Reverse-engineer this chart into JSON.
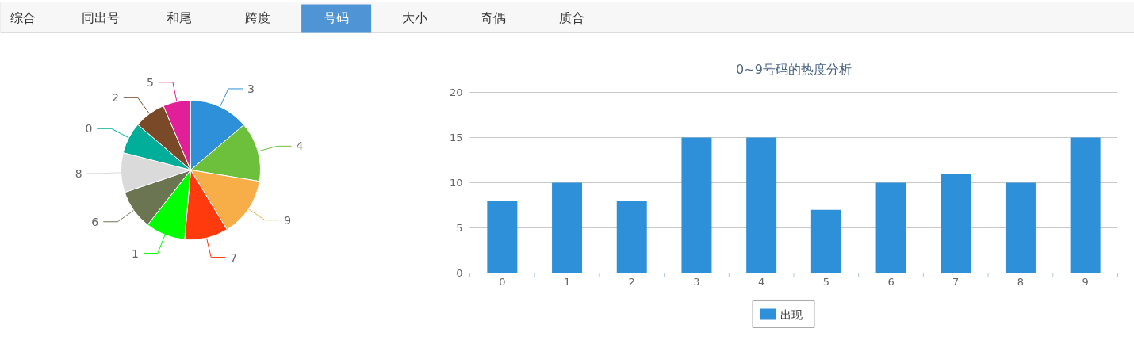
{
  "chart_data": [
    {
      "type": "other",
      "categories": [
        "综合",
        "同出号",
        "和尾",
        "跨度",
        "号码",
        "大小",
        "奇偶",
        "质合"
      ],
      "colors": [
        null,
        null,
        null,
        null,
        "#4f94d4",
        null,
        null,
        null
      ]
    },
    {
      "type": "pie",
      "categories": [
        "3",
        "4",
        "9",
        "7",
        "1",
        "6",
        "8",
        "0",
        "2",
        "5"
      ],
      "values": [
        13.8,
        13.8,
        13.7,
        10.1,
        9.2,
        9.2,
        9.2,
        7.3,
        7.3,
        6.4
      ],
      "colors": [
        "#2e90d9",
        "#6cc03c",
        "#f8ae48",
        "#ff3a0c",
        "#00ff00",
        "#6b7552",
        "#dadada",
        "#00ae9a",
        "#7a4a28",
        "#e01f98"
      ]
    },
    {
      "type": "bar",
      "title": "0~9号码的热度分析",
      "categories": [
        "0",
        "1",
        "2",
        "3",
        "4",
        "5",
        "6",
        "7",
        "8",
        "9"
      ],
      "series": [
        {
          "name": "出现",
          "color": "#2e90d8",
          "values": [
            8,
            10,
            8,
            15,
            15,
            7,
            10,
            11,
            10,
            15
          ]
        }
      ],
      "ylim": [
        0,
        20
      ],
      "yticks": [
        0,
        5,
        10,
        15,
        20
      ],
      "grid": "y",
      "legend": "bottom"
    }
  ]
}
